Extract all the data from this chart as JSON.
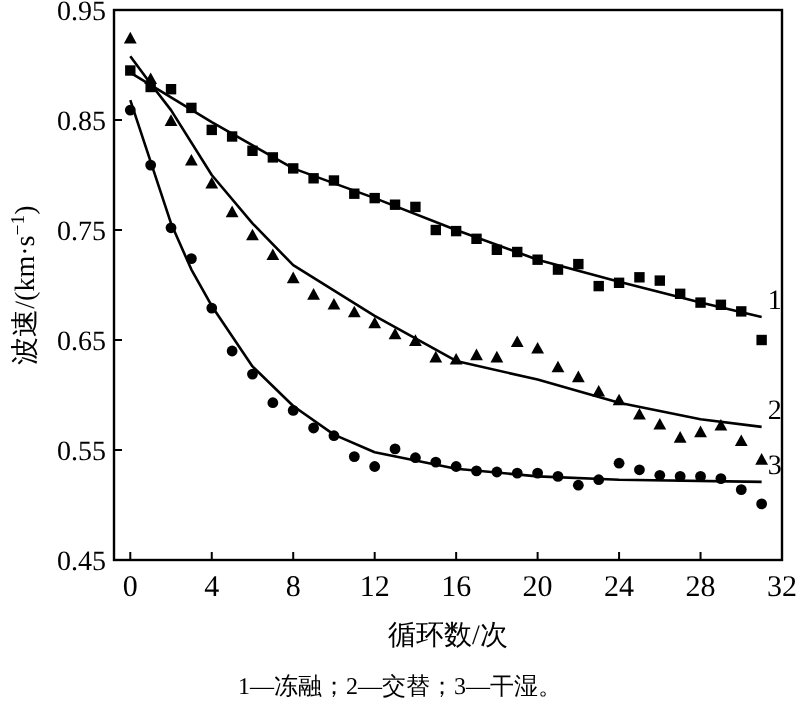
{
  "chart_data": {
    "type": "scatter",
    "xlabel": "循环数/次",
    "ylabel": "波速/(km·s$^{−1}$)",
    "xlim": [
      -0.8,
      32
    ],
    "ylim": [
      0.45,
      0.95
    ],
    "xticks": [
      0,
      4,
      8,
      12,
      16,
      20,
      24,
      28,
      32
    ],
    "yticks": [
      0.45,
      0.55,
      0.65,
      0.75,
      0.85,
      0.95
    ],
    "grid": false,
    "legend": false,
    "x": [
      0,
      1,
      2,
      3,
      4,
      5,
      6,
      7,
      8,
      9,
      10,
      11,
      12,
      13,
      14,
      15,
      16,
      17,
      18,
      19,
      20,
      21,
      22,
      23,
      24,
      25,
      26,
      27,
      28,
      29,
      30,
      31
    ],
    "series": [
      {
        "type": "scatter",
        "marker": "square",
        "color": "#000000",
        "values": [
          0.895,
          0.88,
          0.878,
          0.861,
          0.841,
          0.835,
          0.822,
          0.816,
          0.806,
          0.797,
          0.795,
          0.783,
          0.779,
          0.773,
          0.771,
          0.75,
          0.749,
          0.742,
          0.732,
          0.73,
          0.723,
          0.714,
          0.719,
          0.699,
          0.702,
          0.707,
          0.704,
          0.692,
          0.684,
          0.682,
          0.676,
          0.65
        ]
      },
      {
        "type": "scatter",
        "marker": "triangle",
        "color": "#000000",
        "values": [
          0.924,
          0.887,
          0.849,
          0.813,
          0.792,
          0.766,
          0.745,
          0.727,
          0.706,
          0.691,
          0.682,
          0.675,
          0.665,
          0.655,
          0.649,
          0.634,
          0.632,
          0.636,
          0.634,
          0.648,
          0.642,
          0.625,
          0.616,
          0.603,
          0.595,
          0.582,
          0.573,
          0.561,
          0.566,
          0.572,
          0.558,
          0.541
        ]
      },
      {
        "type": "scatter",
        "marker": "circle",
        "color": "#000000",
        "values": [
          0.859,
          0.809,
          0.752,
          0.724,
          0.679,
          0.64,
          0.619,
          0.593,
          0.586,
          0.57,
          0.563,
          0.544,
          0.535,
          0.551,
          0.543,
          0.539,
          0.535,
          0.531,
          0.53,
          0.529,
          0.529,
          0.526,
          0.518,
          0.523,
          0.538,
          0.532,
          0.527,
          0.526,
          0.526,
          0.524,
          0.514,
          0.501
        ]
      },
      {
        "type": "line",
        "name": "1",
        "line_style": "solid",
        "color": "#000000",
        "x": [
          0,
          4,
          8,
          12,
          16,
          20,
          24,
          28,
          31
        ],
        "values": [
          0.893,
          0.848,
          0.806,
          0.779,
          0.75,
          0.723,
          0.703,
          0.684,
          0.671
        ]
      },
      {
        "type": "line",
        "name": "2",
        "line_style": "solid",
        "color": "#000000",
        "x": [
          0,
          1,
          2,
          4,
          6,
          8,
          12,
          16,
          20,
          24,
          28,
          31
        ],
        "values": [
          0.908,
          0.883,
          0.859,
          0.8,
          0.756,
          0.718,
          0.672,
          0.631,
          0.614,
          0.593,
          0.578,
          0.571
        ]
      },
      {
        "type": "line",
        "name": "3",
        "line_style": "solid",
        "color": "#000000",
        "x": [
          0,
          2,
          3,
          4,
          6,
          8,
          10,
          12,
          16,
          20,
          24,
          31
        ],
        "values": [
          0.868,
          0.756,
          0.714,
          0.681,
          0.626,
          0.59,
          0.564,
          0.548,
          0.533,
          0.526,
          0.523,
          0.521
        ]
      }
    ],
    "annotations": [
      "1—冻融；2—交替；3—干湿。"
    ]
  }
}
